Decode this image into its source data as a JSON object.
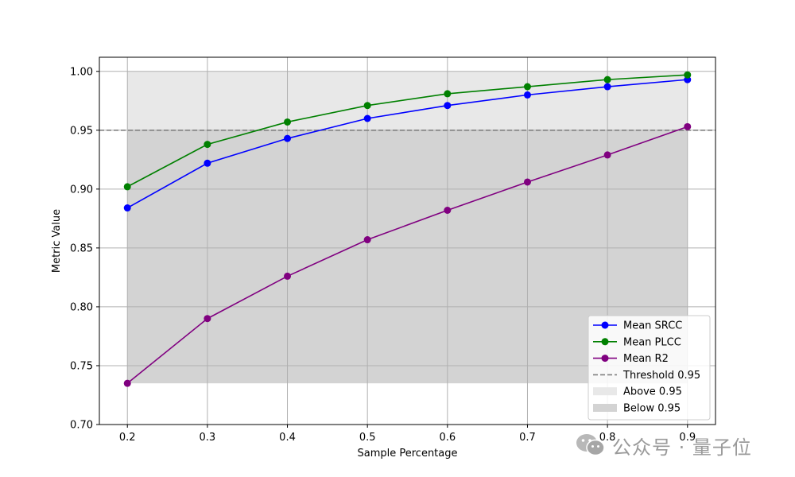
{
  "chart_data": {
    "type": "line",
    "title": "",
    "xlabel": "Sample Percentage",
    "ylabel": "Metric Value",
    "xlim": [
      0.165,
      0.935
    ],
    "ylim": [
      0.7,
      1.012
    ],
    "x_ticks": [
      0.2,
      0.3,
      0.4,
      0.5,
      0.6,
      0.7,
      0.8,
      0.9
    ],
    "x_tick_labels": [
      "0.2",
      "0.3",
      "0.4",
      "0.5",
      "0.6",
      "0.7",
      "0.8",
      "0.9"
    ],
    "y_ticks": [
      0.7,
      0.75,
      0.8,
      0.85,
      0.9,
      0.95,
      1.0
    ],
    "y_tick_labels": [
      "0.70",
      "0.75",
      "0.80",
      "0.85",
      "0.90",
      "0.95",
      "1.00"
    ],
    "grid": true,
    "legend_position": "bottom-right",
    "x": [
      0.2,
      0.3,
      0.4,
      0.5,
      0.6,
      0.7,
      0.8,
      0.9
    ],
    "series": [
      {
        "name": "Mean SRCC",
        "color": "#0000ff",
        "values": [
          0.884,
          0.922,
          0.943,
          0.96,
          0.971,
          0.98,
          0.987,
          0.993
        ]
      },
      {
        "name": "Mean PLCC",
        "color": "#008000",
        "values": [
          0.902,
          0.938,
          0.957,
          0.971,
          0.981,
          0.987,
          0.993,
          0.997
        ]
      },
      {
        "name": "Mean R2",
        "color": "#800080",
        "values": [
          0.735,
          0.79,
          0.826,
          0.857,
          0.882,
          0.906,
          0.929,
          0.953
        ]
      }
    ],
    "threshold": {
      "name": "Threshold 0.95",
      "value": 0.95,
      "color": "#808080"
    },
    "regions": [
      {
        "name": "Above 0.95",
        "x_range": [
          0.2,
          0.9
        ],
        "y_range": [
          0.95,
          1.0
        ],
        "color": "#e8e8e8"
      },
      {
        "name": "Below 0.95",
        "x_range": [
          0.2,
          0.9
        ],
        "y_range": [
          0.735,
          0.95
        ],
        "color": "#d3d3d3"
      }
    ]
  },
  "watermark": {
    "text": "公众号 · 量子位",
    "icon": "wechat-icon",
    "color": "#9a9a9a"
  }
}
